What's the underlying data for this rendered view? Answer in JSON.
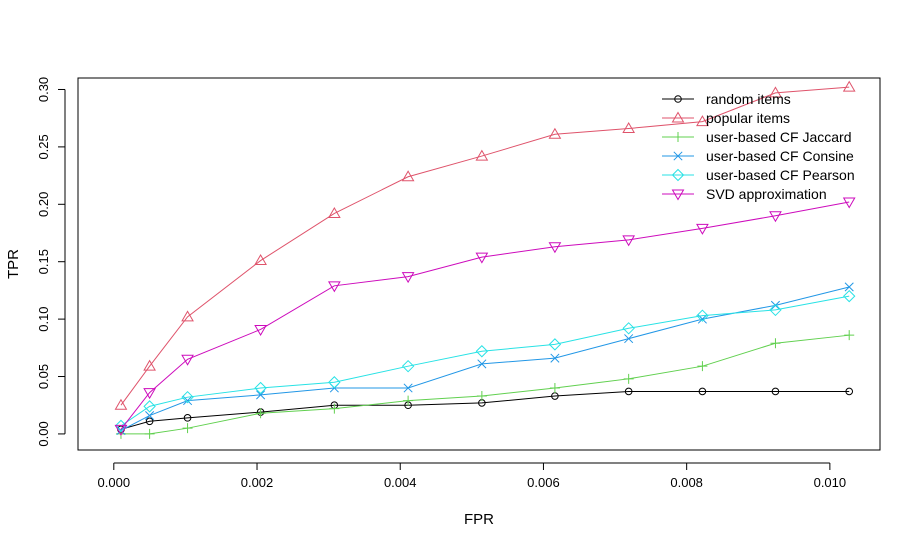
{
  "chart_data": {
    "type": "line",
    "title": "",
    "xlabel": "FPR",
    "ylabel": "TPR",
    "xlim": [
      -0.0005,
      0.0107
    ],
    "ylim": [
      -0.014,
      0.31
    ],
    "x_ticks": [
      0.0,
      0.002,
      0.004,
      0.006,
      0.008,
      0.01
    ],
    "x_tick_labels": [
      "0.000",
      "0.002",
      "0.004",
      "0.006",
      "0.008",
      "0.010"
    ],
    "y_ticks": [
      0.0,
      0.05,
      0.1,
      0.15,
      0.2,
      0.25,
      0.3
    ],
    "y_tick_labels": [
      "0.00",
      "0.05",
      "0.10",
      "0.15",
      "0.20",
      "0.25",
      "0.30"
    ],
    "grid": false,
    "legend_position": "top-right",
    "series": [
      {
        "name": "random items",
        "color": "#000000",
        "marker": "circle",
        "x": [
          0.0001,
          0.0005,
          0.00103,
          0.00205,
          0.00308,
          0.00411,
          0.00514,
          0.00616,
          0.00719,
          0.00822,
          0.00924,
          0.01027
        ],
        "y": [
          0.004,
          0.011,
          0.014,
          0.019,
          0.025,
          0.025,
          0.027,
          0.033,
          0.037,
          0.037,
          0.037,
          0.037
        ]
      },
      {
        "name": "popular items",
        "color": "#df536b",
        "marker": "triangle-up",
        "x": [
          0.0001,
          0.0005,
          0.00103,
          0.00205,
          0.00308,
          0.00411,
          0.00514,
          0.00616,
          0.00719,
          0.00822,
          0.00924,
          0.01027
        ],
        "y": [
          0.025,
          0.059,
          0.102,
          0.151,
          0.192,
          0.224,
          0.242,
          0.261,
          0.266,
          0.272,
          0.297,
          0.302
        ]
      },
      {
        "name": "user-based CF Jaccard",
        "color": "#61d04f",
        "marker": "plus",
        "x": [
          0.0001,
          0.0005,
          0.00103,
          0.00205,
          0.00308,
          0.00411,
          0.00514,
          0.00616,
          0.00719,
          0.00822,
          0.00924,
          0.01027
        ],
        "y": [
          0.0,
          0.0,
          0.005,
          0.018,
          0.022,
          0.029,
          0.033,
          0.04,
          0.048,
          0.059,
          0.079,
          0.086
        ]
      },
      {
        "name": "user-based CF Consine",
        "color": "#2297e6",
        "marker": "cross",
        "x": [
          0.0001,
          0.0005,
          0.00103,
          0.00205,
          0.00308,
          0.00411,
          0.00514,
          0.00616,
          0.00719,
          0.00822,
          0.00924,
          0.01027
        ],
        "y": [
          0.003,
          0.016,
          0.029,
          0.034,
          0.04,
          0.04,
          0.061,
          0.066,
          0.083,
          0.1,
          0.112,
          0.128
        ]
      },
      {
        "name": "user-based CF Pearson",
        "color": "#28e2e5",
        "marker": "diamond",
        "x": [
          0.0001,
          0.0005,
          0.00103,
          0.00205,
          0.00308,
          0.00411,
          0.00514,
          0.00616,
          0.00719,
          0.00822,
          0.00924,
          0.01027
        ],
        "y": [
          0.007,
          0.024,
          0.032,
          0.04,
          0.045,
          0.059,
          0.072,
          0.078,
          0.092,
          0.103,
          0.108,
          0.12
        ]
      },
      {
        "name": "SVD approximation",
        "color": "#cd0bbc",
        "marker": "triangle-down",
        "x": [
          0.0001,
          0.0005,
          0.00103,
          0.00205,
          0.00308,
          0.00411,
          0.00514,
          0.00616,
          0.00719,
          0.00822,
          0.00924,
          0.01027
        ],
        "y": [
          0.004,
          0.036,
          0.065,
          0.091,
          0.129,
          0.137,
          0.154,
          0.163,
          0.169,
          0.179,
          0.19,
          0.202
        ]
      }
    ]
  }
}
